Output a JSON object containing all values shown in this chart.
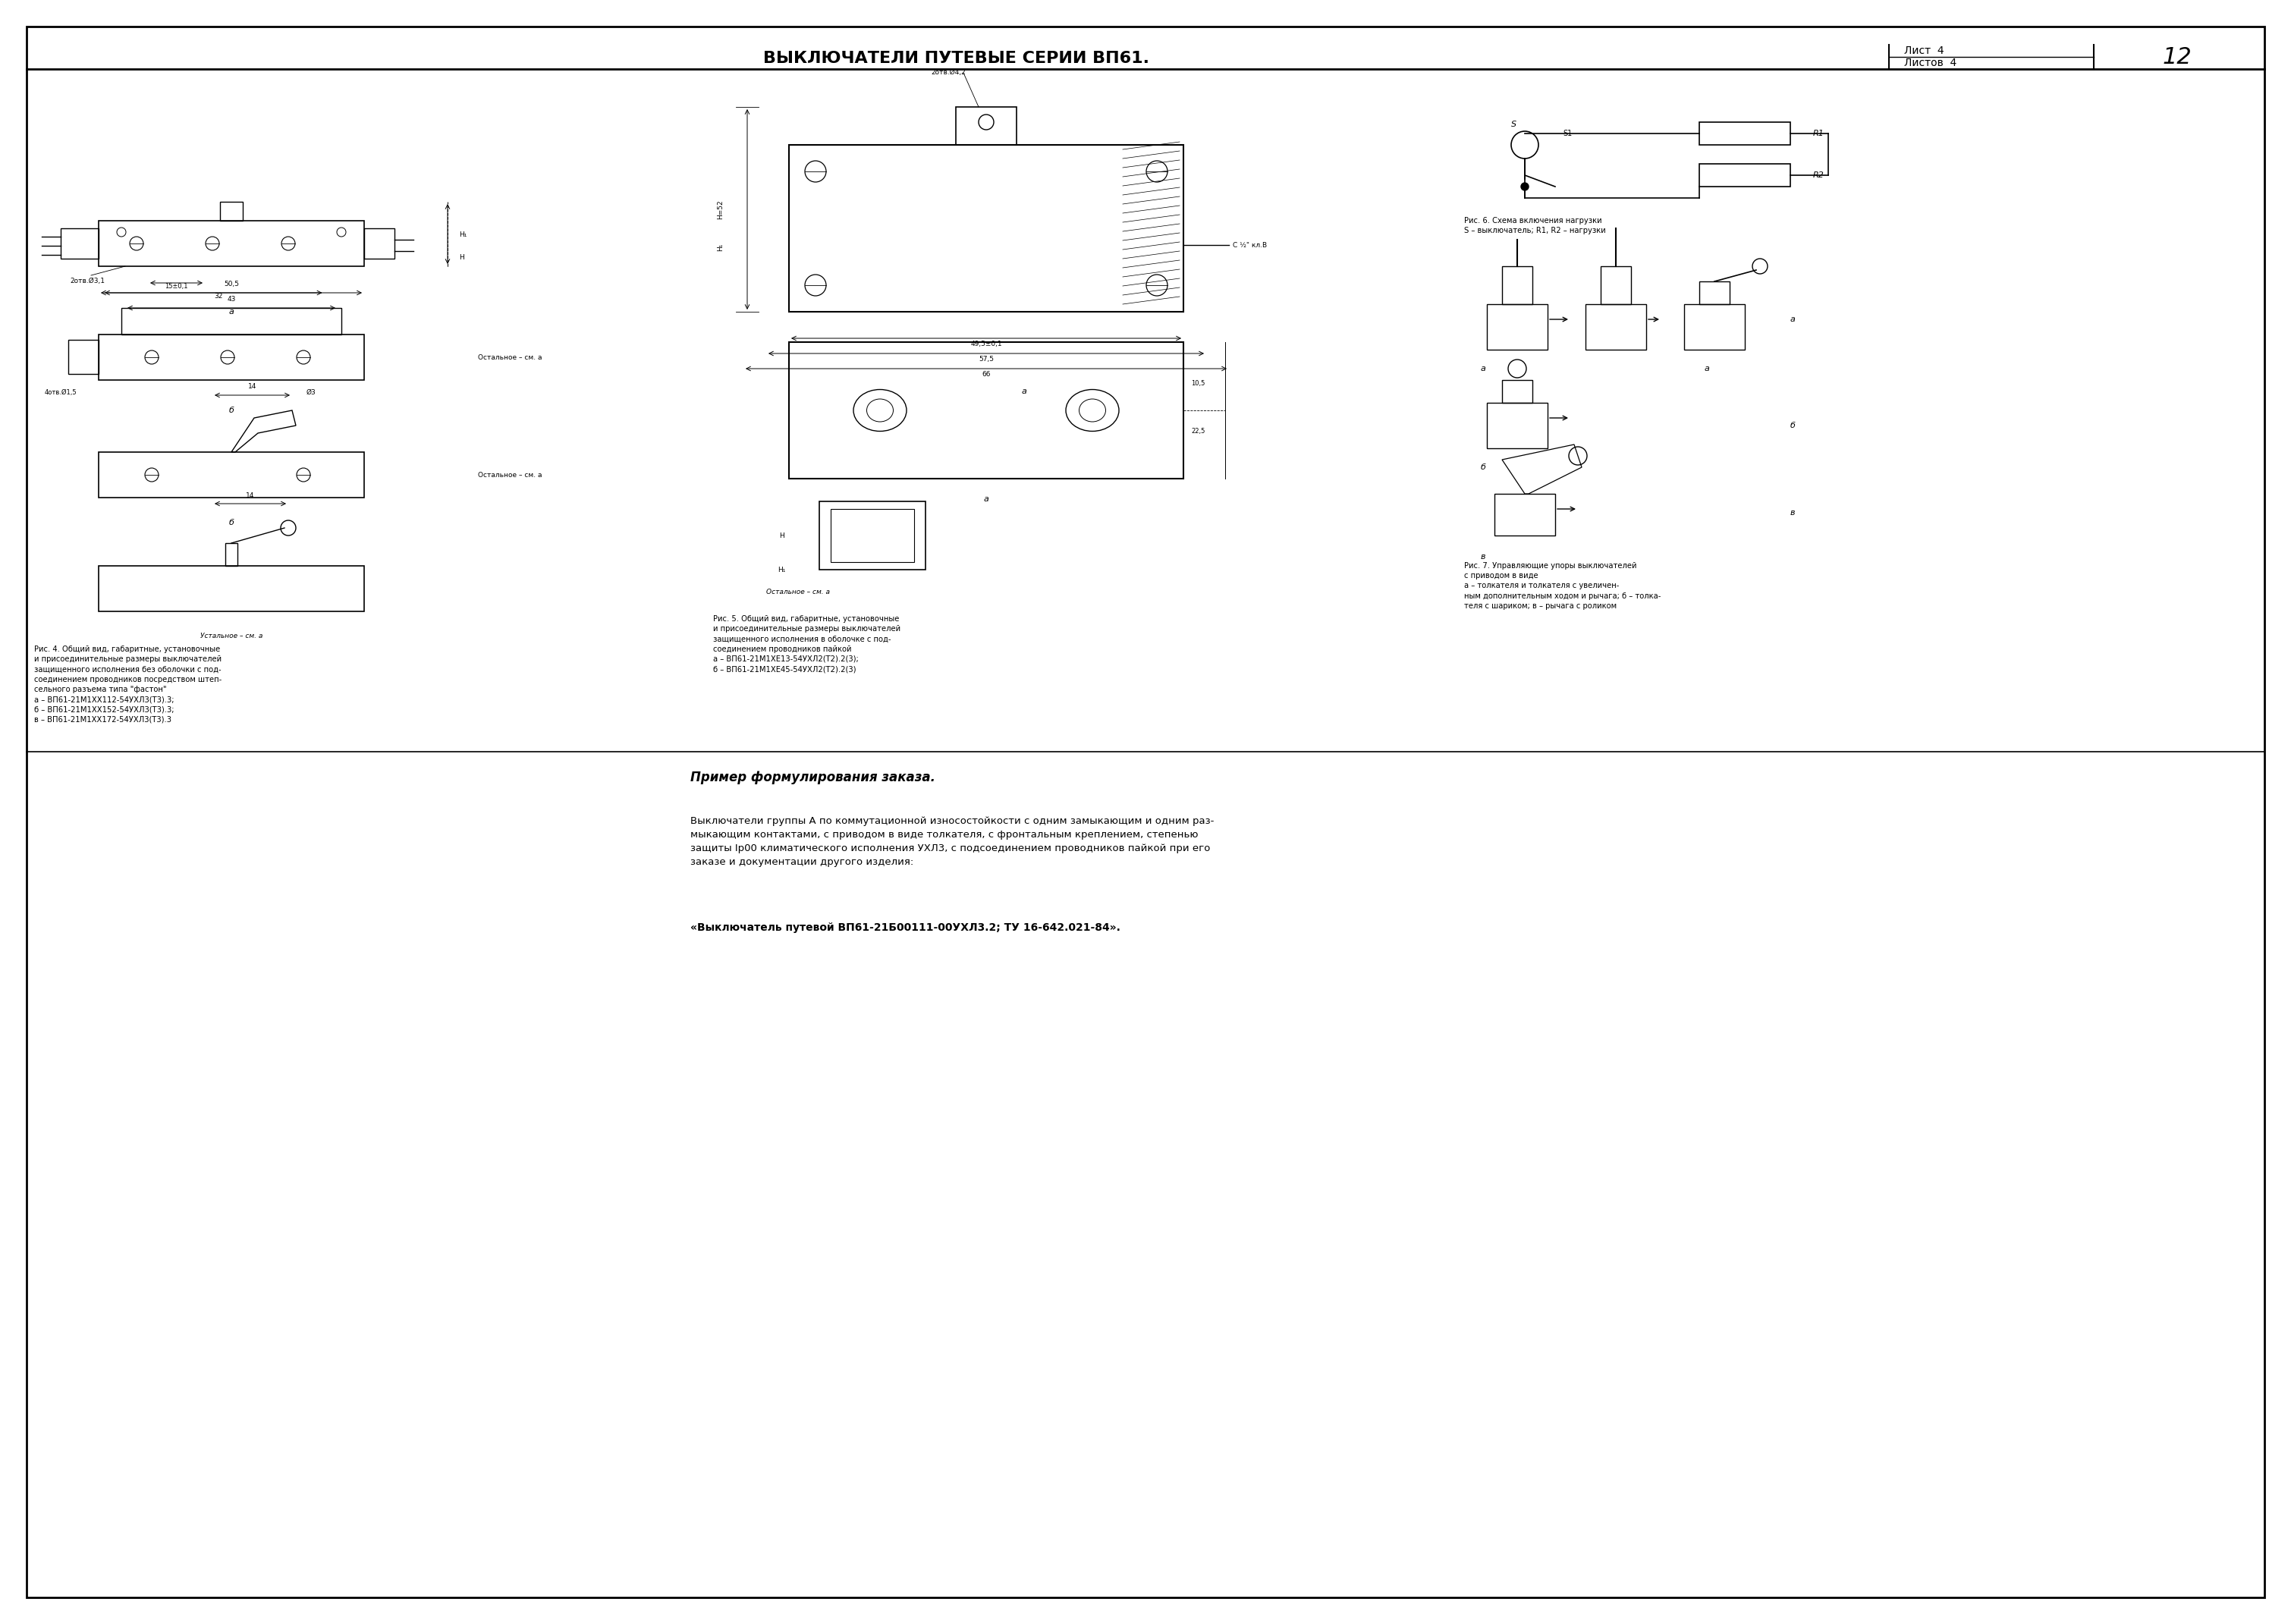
{
  "bg_color": "#ffffff",
  "border_color": "#000000",
  "title": "ВЫКЛЮЧАТЕЛИ ПУТЕВЫЕ СЕРИИ ВП61.",
  "list_label": "Лист",
  "list_value": "4",
  "listov_label": "Листов",
  "listov_value": "4",
  "page_number": "12",
  "fig4_caption": "Рис. 4. Общий вид, габаритные, установочные\nи присоединительные размеры выключателей\nзащищенного исполнения без оболочки с под-\nсоединением проводников посредством штеп-\nсельного разъема типа \"фастон\"\na – ВП61-21М1ХХ112-54УХЛ3(Т3).3;\nб – ВП61-21М1ХХ152-54УХЛ3(Т3).3;\nв – ВП61-21М1ХХ172-54УХЛ3(Т3).3",
  "fig5_caption": "Рис. 5. Общий вид, габаритные, установочные\nи присоединительные размеры выключателей\nзащищенного исполнения в оболочке с под-\nсоединением проводников пайкой\nа – ВП61-21М1ХЕ13-54УХЛ2(Т2).2(3);\nб – ВП61-21М1ХЕ45-54УХЛ2(Т2).2(3)",
  "fig6_caption": "Рис. 6. Схема включения нагрузки\nS – выключатель; R1, R2 – нагрузки",
  "fig7_caption": "Рис. 7. Управляющие упоры выключателей\nс приводом в виде\nа – толкателя и толкателя с увеличен-\nным дополнительным ходом и рычага; б – толка-\nтеля с шариком; в – рычага с роликом",
  "order_title": "Пример формулирования заказа.",
  "order_text": "Выключатели группы А по коммутационной износостойкости с одним замыкающим и одним раз-\nмыкающим контактами, с приводом в виде толкателя, с фронтальным креплением, степенью\nзащиты Ip00 климатического исполнения УХЛ3, с подсоединением проводников пайкой при его\nзаказе и документации другого изделия:",
  "order_designation": "«Выключатель путевой ВП61-21Б00111-00УХЛ3.2; ТУ 16-642.021-84»."
}
